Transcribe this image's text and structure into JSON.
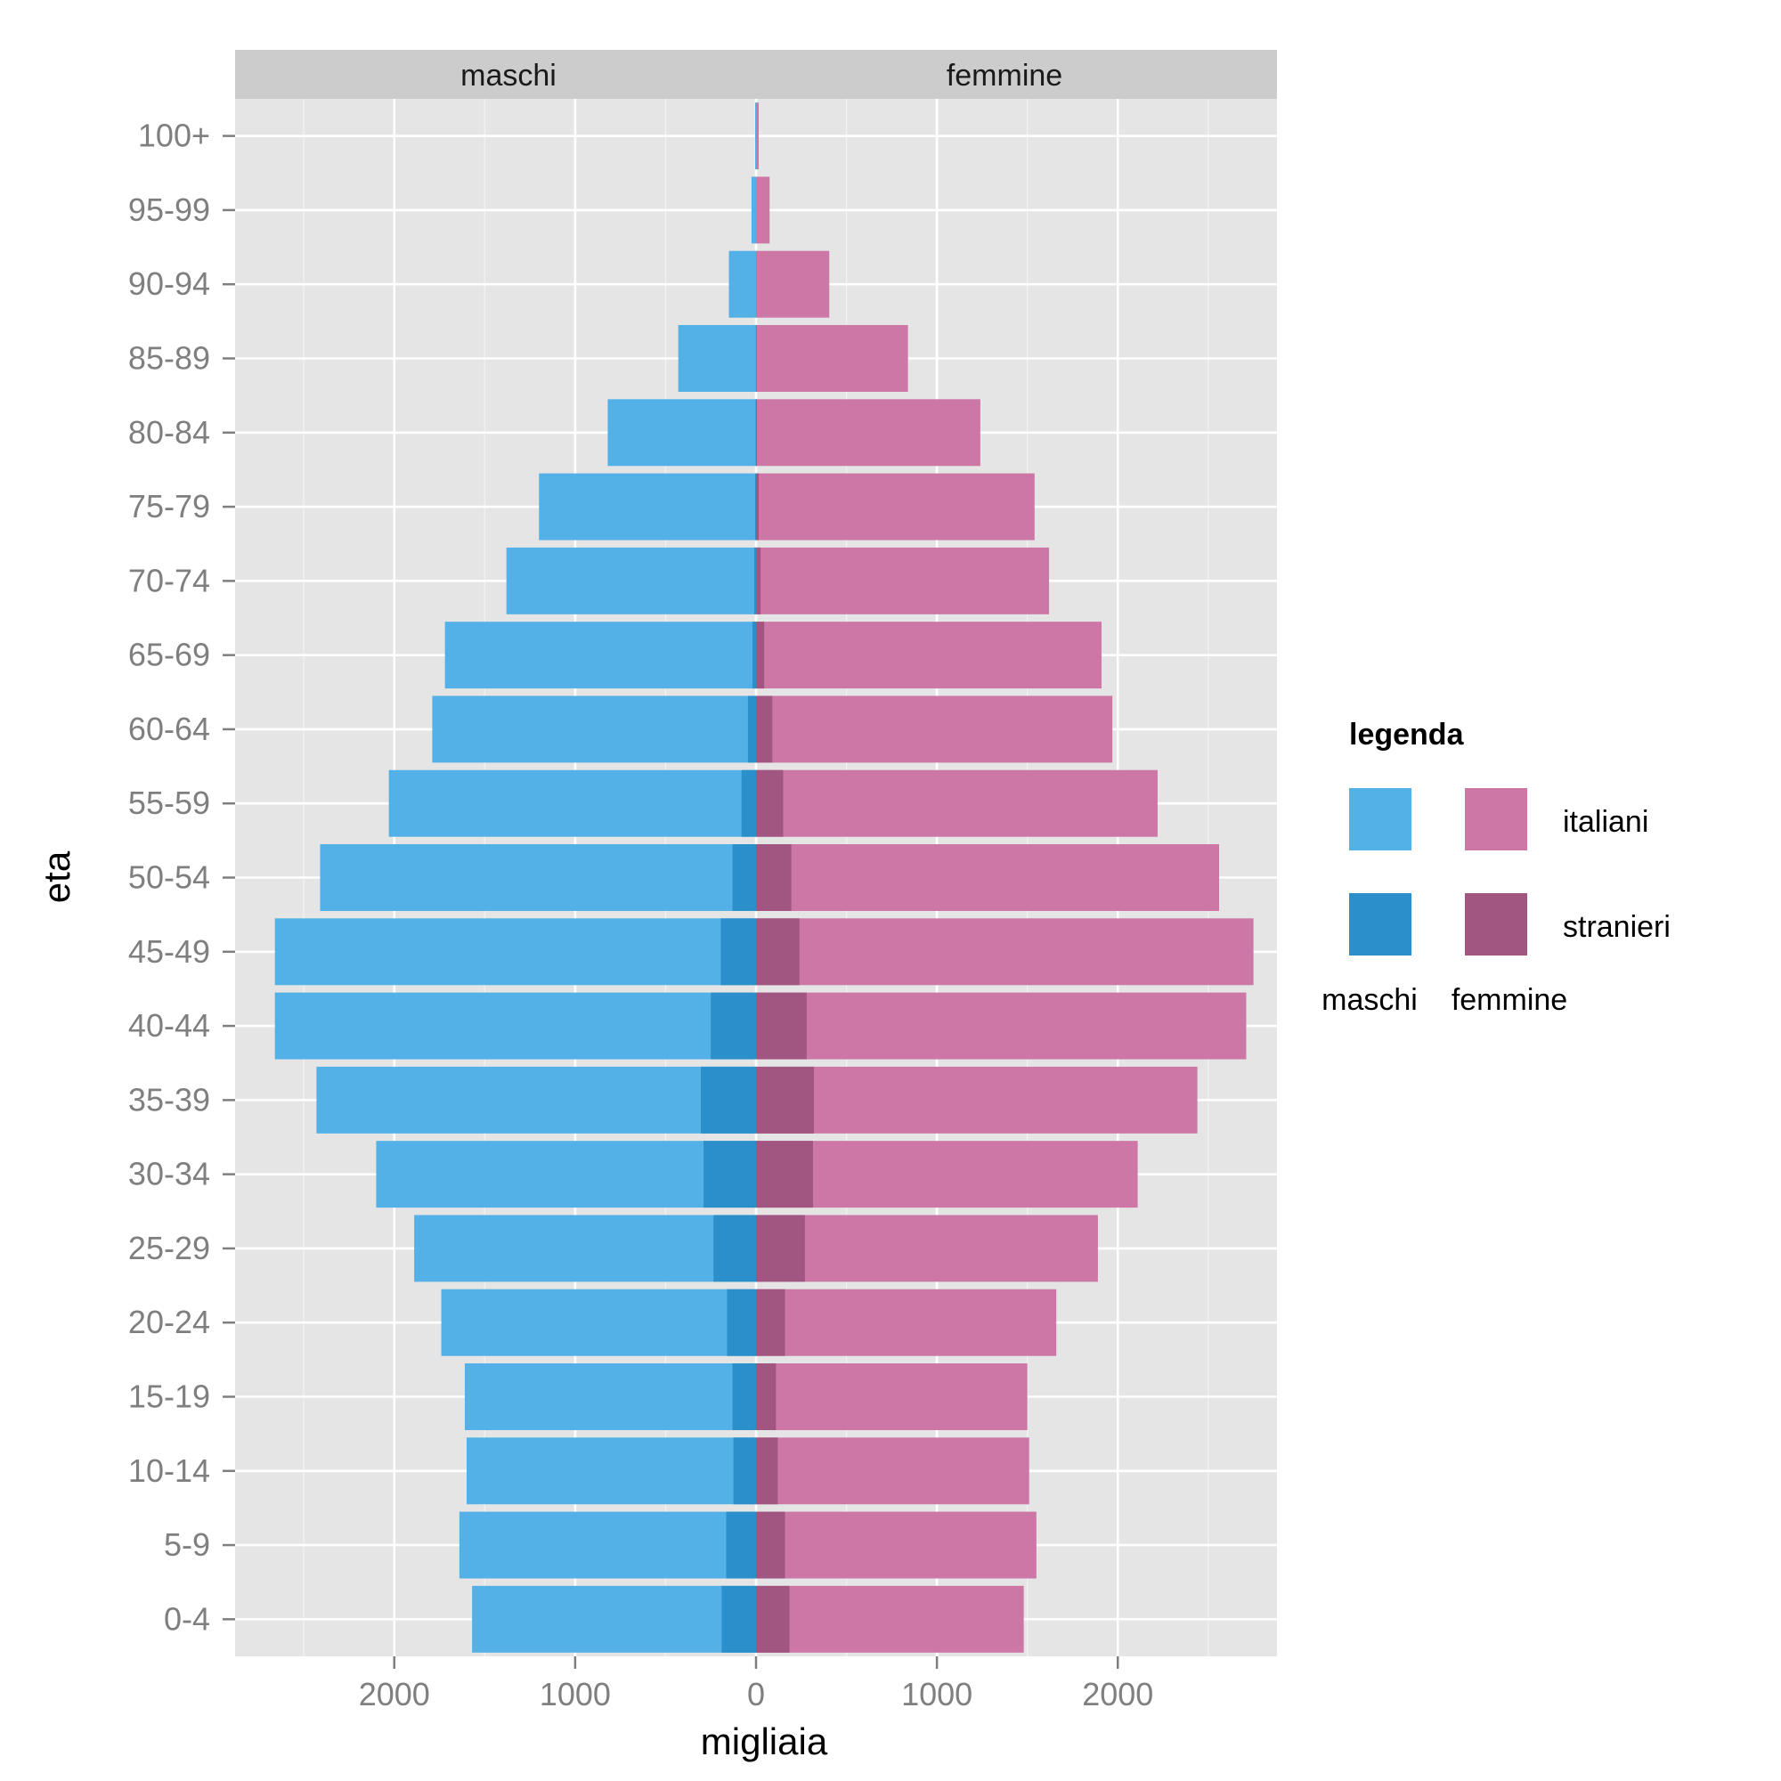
{
  "chart_data": {
    "type": "bar",
    "orientation": "horizontal-pyramid",
    "xlabel": "migliaia",
    "ylabel": "eta",
    "xlim": [
      -2880,
      2880
    ],
    "xticks": [
      -2000,
      -1000,
      0,
      1000,
      2000
    ],
    "xtick_labels": [
      "2000",
      "1000",
      "0",
      "1000",
      "2000"
    ],
    "grid": true,
    "facets": [
      "maschi",
      "femmine"
    ],
    "categories": [
      "0-4",
      "5-9",
      "10-14",
      "15-19",
      "20-24",
      "25-29",
      "30-34",
      "35-39",
      "40-44",
      "45-49",
      "50-54",
      "55-59",
      "60-64",
      "65-69",
      "70-74",
      "75-79",
      "80-84",
      "85-89",
      "90-94",
      "95-99",
      "100+"
    ],
    "series": [
      {
        "name": "italiani",
        "sex": "maschi",
        "color": "#54b1e7",
        "values": [
          1570,
          1640,
          1600,
          1610,
          1740,
          1890,
          2100,
          2430,
          2660,
          2660,
          2410,
          2030,
          1790,
          1720,
          1380,
          1200,
          820,
          430,
          150,
          25,
          5
        ]
      },
      {
        "name": "stranieri",
        "sex": "maschi",
        "color": "#2a8fca",
        "values": [
          190,
          165,
          125,
          130,
          160,
          235,
          290,
          305,
          250,
          195,
          130,
          80,
          45,
          20,
          10,
          5,
          2,
          1,
          0,
          0,
          0
        ]
      },
      {
        "name": "italiani",
        "sex": "femmine",
        "color": "#cc77a6",
        "values": [
          1480,
          1550,
          1510,
          1500,
          1660,
          1890,
          2110,
          2440,
          2710,
          2750,
          2560,
          2220,
          1970,
          1910,
          1620,
          1540,
          1240,
          840,
          405,
          75,
          15
        ]
      },
      {
        "name": "stranieri",
        "sex": "femmine",
        "color": "#a15682",
        "values": [
          185,
          160,
          120,
          110,
          160,
          270,
          315,
          320,
          280,
          240,
          195,
          150,
          90,
          45,
          25,
          15,
          5,
          3,
          1,
          0,
          0
        ]
      }
    ],
    "legend": {
      "title": "legenda",
      "position": "right",
      "row_labels": [
        "italiani",
        "stranieri"
      ],
      "column_labels": [
        "maschi",
        "femmine"
      ]
    },
    "colors": {
      "panel": "#e5e5e5",
      "strip": "#cccccc",
      "grid_major": "#ffffff",
      "grid_minor": "#f2f2f2",
      "tick_text": "#7f7f7f"
    }
  }
}
